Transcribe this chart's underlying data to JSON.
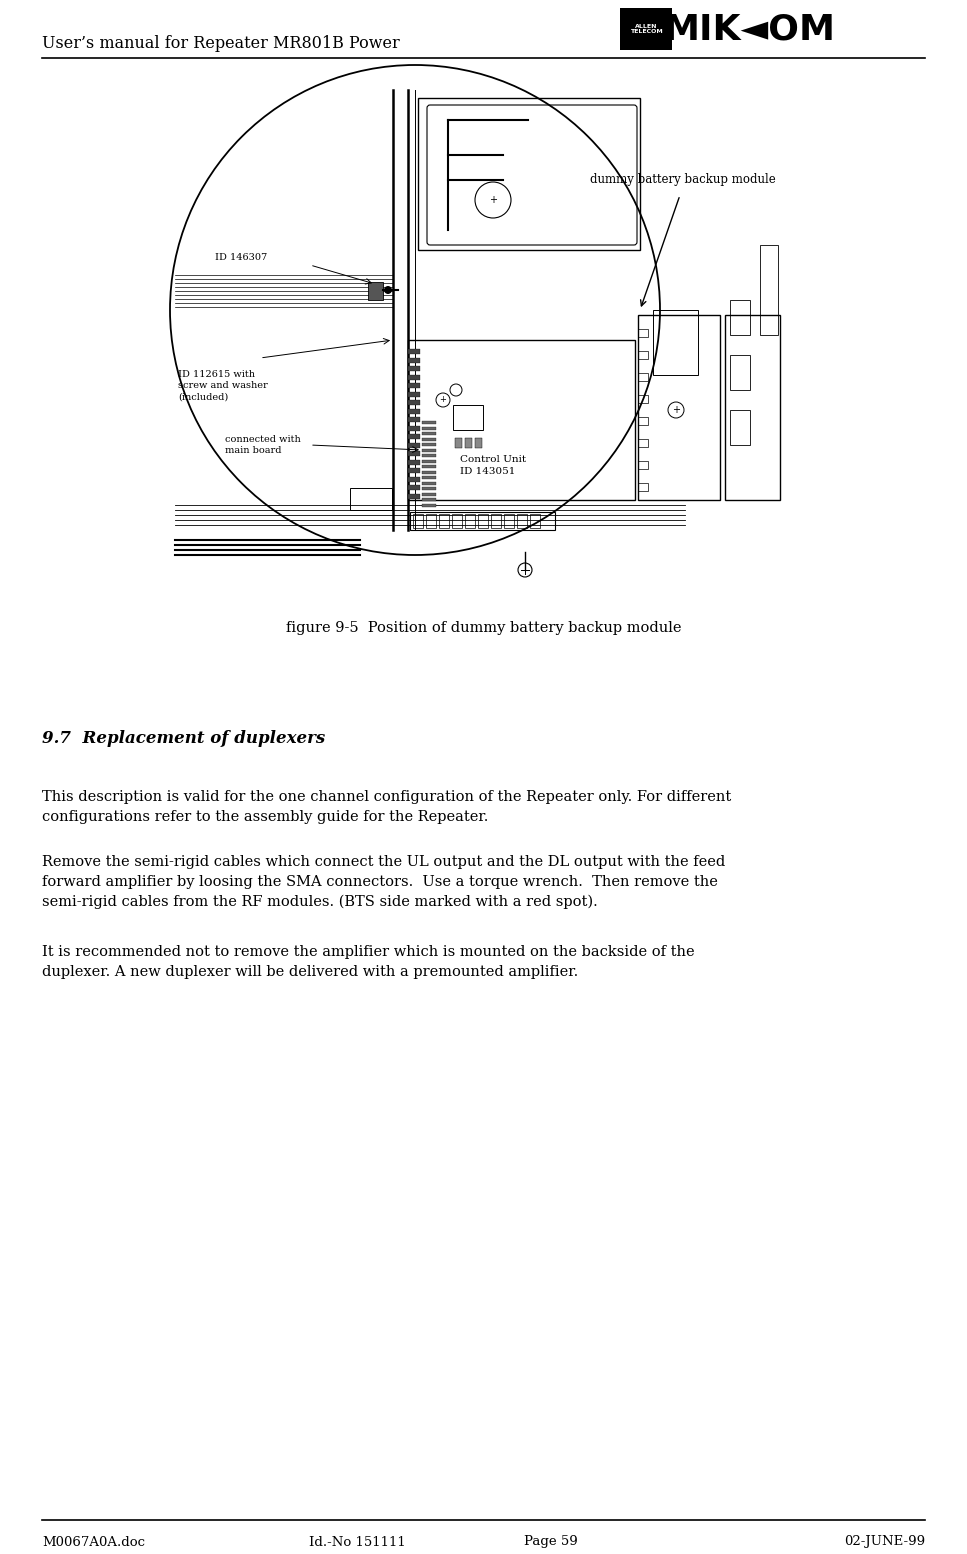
{
  "page_width": 9.67,
  "page_height": 15.54,
  "dpi": 100,
  "bg_color": "#ffffff",
  "header_title": "User’s manual for Repeater MR801B Power",
  "header_title_fontsize": 11.5,
  "footer_left": "M0067A0A.doc",
  "footer_center_left": "Id.-No 151111",
  "footer_center": "Page 59",
  "footer_right": "02-JUNE-99",
  "footer_fontsize": 9.5,
  "figure_caption": "figure 9-5  Position of dummy battery backup module",
  "figure_caption_fontsize": 10.5,
  "section_title": "9.7  Replacement of duplexers",
  "section_title_fontsize": 12,
  "para1_line1": "This description is valid for the one channel configuration of the Repeater only. For different",
  "para1_line2": "configurations refer to the assembly guide for the Repeater.",
  "para2_line1": "Remove the semi-rigid cables which connect the UL output and the DL output with the feed",
  "para2_line2": "forward amplifier by loosing the SMA connectors.  Use a torque wrench.  Then remove the",
  "para2_line3": "semi-rigid cables from the RF modules. (BTS side marked with a red spot).",
  "para3_line1": "It is recommended not to remove the amplifier which is mounted on the backside of the",
  "para3_line2": "duplexer. A new duplexer will be delivered with a premounted amplifier.",
  "para_fontsize": 10.5,
  "dummy_label": "dummy battery backup module",
  "id1_label": "ID 146307",
  "id2_label": "ID 112615 with\nscrew and washer\n(included)",
  "connected_label": "connected with\nmain board",
  "control_label": "Control Unit\nID 143051"
}
